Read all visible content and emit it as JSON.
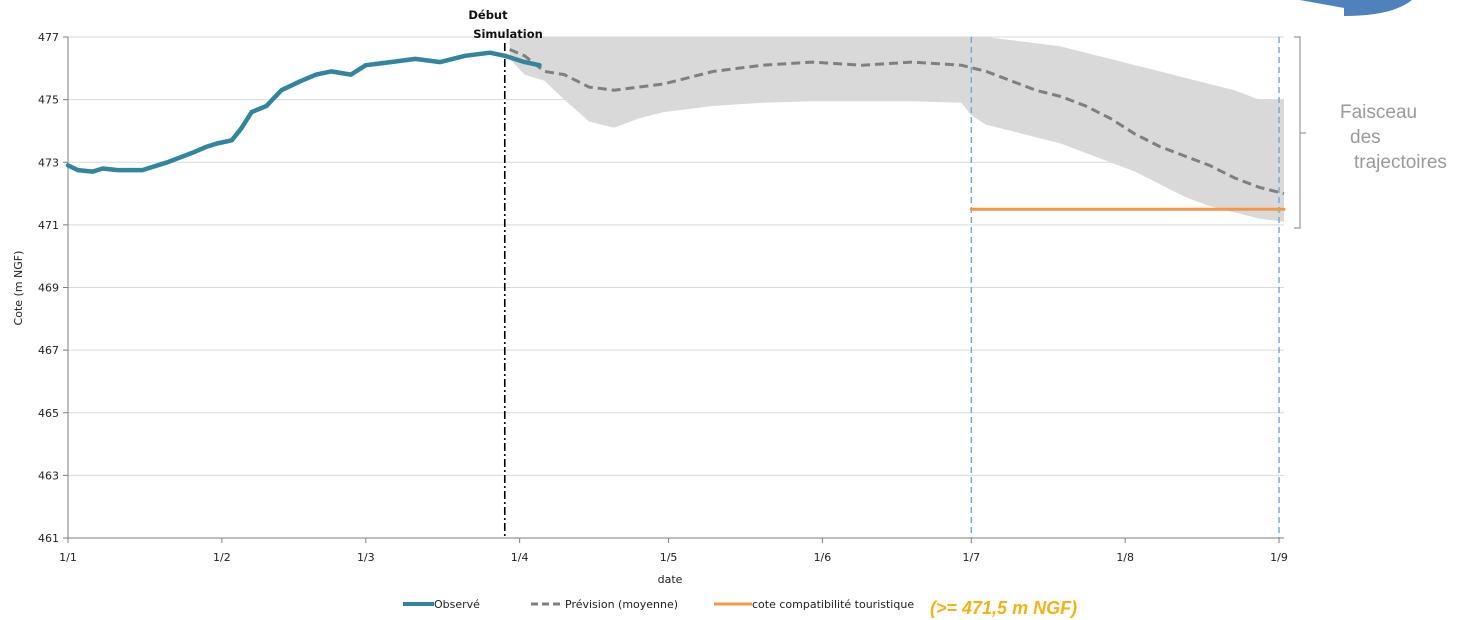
{
  "chart_data": {
    "type": "line",
    "xlabel": "date",
    "ylabel": "Cote (m NGF)",
    "ylim": [
      461,
      477
    ],
    "yticks": [
      461,
      463,
      465,
      467,
      469,
      471,
      473,
      475,
      477
    ],
    "xlim": [
      0,
      245
    ],
    "xticks": [
      {
        "pos": 0,
        "label": "1/1"
      },
      {
        "pos": 31,
        "label": "1/2"
      },
      {
        "pos": 60,
        "label": "1/3"
      },
      {
        "pos": 91,
        "label": "1/4"
      },
      {
        "pos": 121,
        "label": "1/5"
      },
      {
        "pos": 152,
        "label": "1/6"
      },
      {
        "pos": 182,
        "label": "1/7"
      },
      {
        "pos": 213,
        "label": "1/8"
      },
      {
        "pos": 244,
        "label": "1/9"
      }
    ],
    "grid": "horizontal",
    "legend_position": "bottom",
    "series": [
      {
        "name": "Observé",
        "style": "solid",
        "color": "#31859c",
        "x": [
          0,
          2,
          5,
          7,
          10,
          15,
          20,
          25,
          28,
          30,
          33,
          35,
          37,
          40,
          43,
          47,
          50,
          53,
          57,
          60,
          65,
          70,
          75,
          80,
          85,
          88,
          92,
          95
        ],
        "y": [
          472.9,
          472.75,
          472.7,
          472.8,
          472.75,
          472.75,
          473.0,
          473.3,
          473.5,
          473.6,
          473.7,
          474.1,
          474.6,
          474.8,
          475.3,
          475.6,
          475.8,
          475.9,
          475.8,
          476.1,
          476.2,
          476.3,
          476.2,
          476.4,
          476.5,
          476.4,
          476.2,
          476.1
        ]
      },
      {
        "name": "Prévision (moyenne)",
        "style": "dashed",
        "color": "#7f7f7f",
        "x": [
          89,
          92,
          96,
          100,
          105,
          110,
          115,
          120,
          125,
          130,
          135,
          140,
          150,
          160,
          170,
          180,
          185,
          190,
          195,
          200,
          205,
          210,
          215,
          220,
          225,
          230,
          235,
          240,
          245
        ],
        "y": [
          476.6,
          476.4,
          475.9,
          475.8,
          475.4,
          475.3,
          475.4,
          475.5,
          475.7,
          475.9,
          476.0,
          476.1,
          476.2,
          476.1,
          476.2,
          476.1,
          475.9,
          475.6,
          475.3,
          475.1,
          474.8,
          474.4,
          473.9,
          473.5,
          473.2,
          472.9,
          472.5,
          472.2,
          472.0
        ]
      },
      {
        "name": "cote compatibilité touristique",
        "style": "solid",
        "color": "#f79646",
        "x": [
          182,
          245
        ],
        "y": [
          471.5,
          471.5
        ]
      }
    ],
    "envelope": {
      "color": "#d9d9d9",
      "x": [
        89,
        92,
        96,
        100,
        105,
        110,
        115,
        120,
        130,
        140,
        150,
        160,
        170,
        180,
        182,
        185,
        190,
        195,
        200,
        205,
        210,
        215,
        220,
        225,
        230,
        235,
        240,
        245
      ],
      "upper": [
        477,
        477,
        477,
        477,
        477,
        477,
        477,
        477,
        477,
        477,
        477,
        477,
        477,
        477,
        477,
        477,
        476.9,
        476.8,
        476.7,
        476.5,
        476.3,
        476.1,
        475.9,
        475.7,
        475.5,
        475.3,
        475.0,
        475.0
      ],
      "lower": [
        476.3,
        475.8,
        475.6,
        475.0,
        474.3,
        474.1,
        474.4,
        474.6,
        474.8,
        474.9,
        474.95,
        474.95,
        474.95,
        474.9,
        474.5,
        474.2,
        474.0,
        473.8,
        473.6,
        473.3,
        473.0,
        472.7,
        472.3,
        471.9,
        471.6,
        471.4,
        471.2,
        471.1
      ]
    },
    "vertical_markers": [
      {
        "x": 88,
        "style": "dash-dot",
        "color": "#000000"
      },
      {
        "x": 182,
        "style": "dashed",
        "color": "#6fa8dc"
      },
      {
        "x": 244,
        "style": "dashed",
        "color": "#6fa8dc"
      }
    ],
    "annotations": {
      "simulation_start": [
        "Début",
        "Simulation"
      ],
      "bundle_label": [
        "Faisceau",
        "des",
        "trajectoires"
      ],
      "threshold_note": "(>= 471,5 m NGF)"
    }
  }
}
